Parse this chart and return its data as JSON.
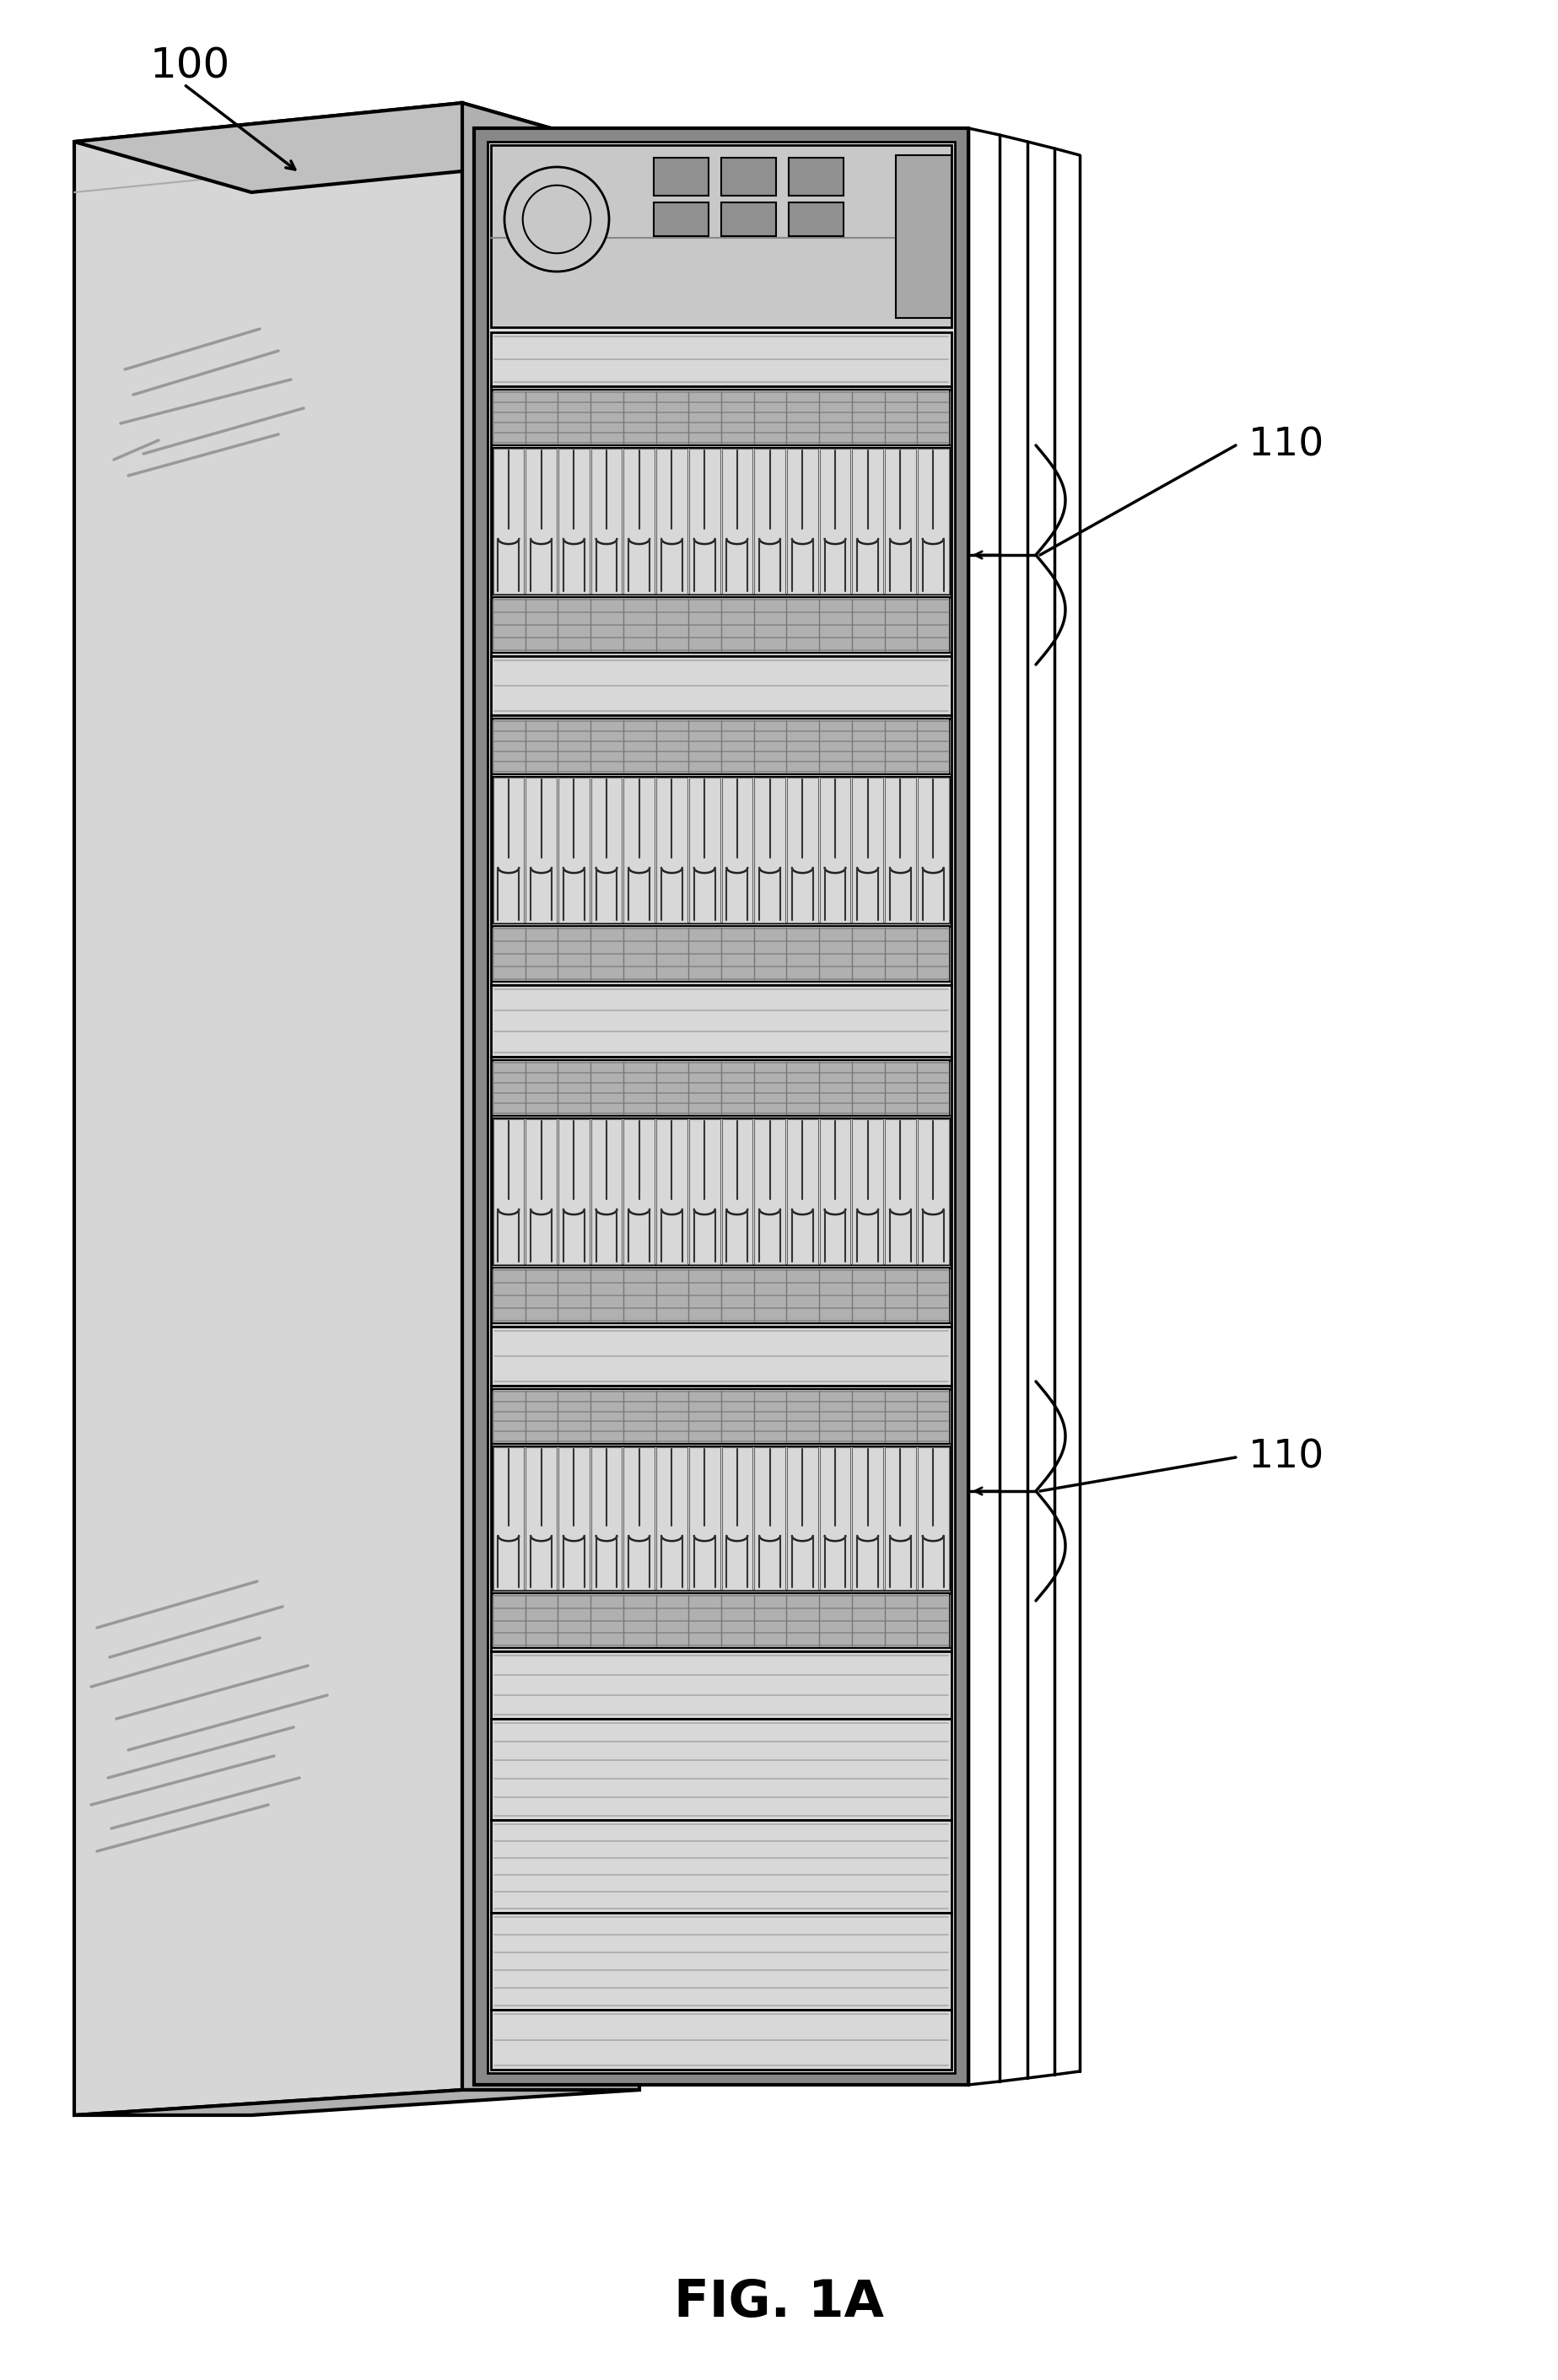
{
  "title": "FIG. 1A",
  "label_100": "100",
  "label_110": "110",
  "bg_color": "#ffffff",
  "line_color": "#000000",
  "side_fill": "#d8d8d8",
  "top_fill": "#c8c8c8",
  "front_fill": "#b8b8b8",
  "rack_bg": "#c0c0c0",
  "inner_bg": "#e8e8e8",
  "blade_bg": "#e0e0e0",
  "grid_fill": "#aaaaaa",
  "rail_fill": "#d0d0d0"
}
